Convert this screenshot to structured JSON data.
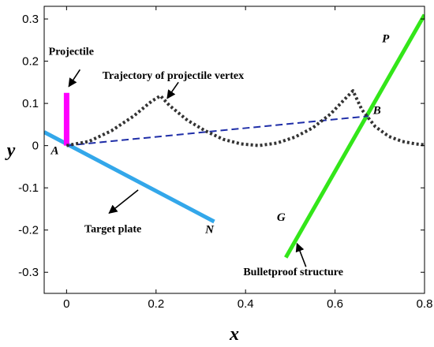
{
  "chart_data": {
    "type": "line",
    "xlabel": "x",
    "ylabel": "y",
    "xlim": [
      -0.05,
      0.8
    ],
    "ylim": [
      -0.35,
      0.33
    ],
    "xticks": [
      "0",
      "0.2",
      "0.4",
      "0.6",
      "0.8"
    ],
    "yticks": [
      "-0.3",
      "-0.2",
      "-0.1",
      "0",
      "0.1",
      "0.2",
      "0.3"
    ],
    "xtick_values": [
      0,
      0.2,
      0.4,
      0.6,
      0.8
    ],
    "ytick_values": [
      -0.3,
      -0.2,
      -0.1,
      0,
      0.1,
      0.2,
      0.3
    ],
    "grid": false,
    "series": [
      {
        "role": "target-plate",
        "style": "solid",
        "color": "#33a7ea",
        "x": [
          -0.05,
          0.33
        ],
        "y": [
          0.032,
          -0.18
        ]
      },
      {
        "role": "projectile",
        "style": "solid",
        "color": "#ff00ff",
        "x": [
          0.0,
          0.0
        ],
        "y": [
          0.0,
          0.125
        ]
      },
      {
        "role": "bulletproof-structure",
        "style": "solid",
        "color": "#33e619",
        "x": [
          0.49,
          0.8
        ],
        "y": [
          -0.265,
          0.31
        ]
      },
      {
        "role": "line-AB",
        "style": "dashed",
        "color": "#1f2ea8",
        "x": [
          0.0,
          0.675
        ],
        "y": [
          0.0,
          0.07
        ]
      },
      {
        "role": "vertex-trajectory",
        "style": "dotted",
        "color": "#333333",
        "x": [
          0.0,
          0.05,
          0.1,
          0.15,
          0.19,
          0.21,
          0.23,
          0.27,
          0.31,
          0.35,
          0.39,
          0.43,
          0.47,
          0.51,
          0.55,
          0.59,
          0.62,
          0.64,
          0.66,
          0.69,
          0.72,
          0.75,
          0.78,
          0.8
        ],
        "y": [
          0.0,
          0.01,
          0.035,
          0.07,
          0.105,
          0.118,
          0.095,
          0.06,
          0.035,
          0.015,
          0.004,
          0.0,
          0.006,
          0.02,
          0.042,
          0.075,
          0.108,
          0.13,
          0.085,
          0.045,
          0.022,
          0.01,
          0.004,
          0.002
        ]
      }
    ],
    "annotations": [
      {
        "text": "Projectile",
        "x": -0.04,
        "y": 0.215
      },
      {
        "text": "Trajectory of projectile vertex",
        "x": 0.08,
        "y": 0.158
      },
      {
        "text": "Target plate",
        "x": 0.04,
        "y": -0.205
      },
      {
        "text": "Bulletproof structure",
        "x": 0.395,
        "y": -0.307
      }
    ],
    "arrows": [
      {
        "from": [
          0.03,
          0.18
        ],
        "to": [
          0.005,
          0.14
        ]
      },
      {
        "from": [
          0.25,
          0.15
        ],
        "to": [
          0.225,
          0.112
        ]
      },
      {
        "from": [
          0.16,
          -0.105
        ],
        "to": [
          0.095,
          -0.16
        ]
      },
      {
        "from": [
          0.535,
          -0.287
        ],
        "to": [
          0.515,
          -0.232
        ]
      }
    ],
    "point_labels": [
      {
        "text": "A",
        "x": -0.035,
        "y": -0.02
      },
      {
        "text": "B",
        "x": 0.685,
        "y": 0.075
      },
      {
        "text": "N",
        "x": 0.31,
        "y": -0.207
      },
      {
        "text": "G",
        "x": 0.47,
        "y": -0.178
      },
      {
        "text": "P",
        "x": 0.705,
        "y": 0.245
      }
    ]
  }
}
